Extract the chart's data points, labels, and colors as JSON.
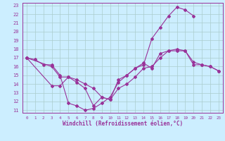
{
  "xlabel": "Windchill (Refroidissement éolien,°C)",
  "bg_color": "#cceeff",
  "line_color": "#993399",
  "grid_color": "#aacccc",
  "xlim": [
    -0.5,
    23.5
  ],
  "ylim": [
    10.7,
    23.3
  ],
  "yticks": [
    11,
    12,
    13,
    14,
    15,
    16,
    17,
    18,
    19,
    20,
    21,
    22,
    23
  ],
  "xticks": [
    0,
    1,
    2,
    3,
    4,
    5,
    6,
    7,
    8,
    9,
    10,
    11,
    12,
    13,
    14,
    15,
    16,
    17,
    18,
    19,
    20,
    21,
    22,
    23
  ],
  "line1_x": [
    0,
    1,
    2,
    3,
    4,
    5,
    6,
    7,
    8,
    9,
    10,
    11,
    12,
    13,
    14,
    15,
    16,
    17,
    18,
    19,
    20,
    21,
    22,
    23
  ],
  "line1_y": [
    17.0,
    16.8,
    16.2,
    16.2,
    15.0,
    11.8,
    11.5,
    11.0,
    11.2,
    11.8,
    12.5,
    14.2,
    15.0,
    15.8,
    16.4,
    15.8,
    17.5,
    17.8,
    18.0,
    17.8,
    16.2,
    16.2,
    16.0,
    15.5
  ],
  "line2_x": [
    0,
    3,
    4,
    5,
    6,
    7,
    8,
    9,
    10,
    11,
    12,
    13,
    14,
    15,
    16,
    17,
    18,
    19,
    20,
    21,
    22,
    23
  ],
  "line2_y": [
    17.0,
    16.0,
    14.8,
    14.8,
    14.5,
    14.0,
    13.5,
    12.5,
    12.2,
    13.5,
    14.0,
    14.8,
    15.8,
    16.0,
    17.0,
    17.8,
    17.8,
    17.8,
    16.5,
    16.2,
    16.0,
    15.5
  ],
  "line3_x": [
    0,
    3,
    4,
    5,
    6,
    7,
    8,
    9,
    10,
    11,
    12,
    13,
    14,
    15,
    16,
    17,
    18,
    19,
    20
  ],
  "line3_y": [
    17.0,
    13.8,
    13.8,
    14.8,
    14.2,
    13.5,
    11.5,
    12.5,
    12.2,
    14.5,
    15.0,
    15.8,
    16.2,
    19.2,
    20.5,
    21.8,
    22.8,
    22.5,
    21.8
  ]
}
